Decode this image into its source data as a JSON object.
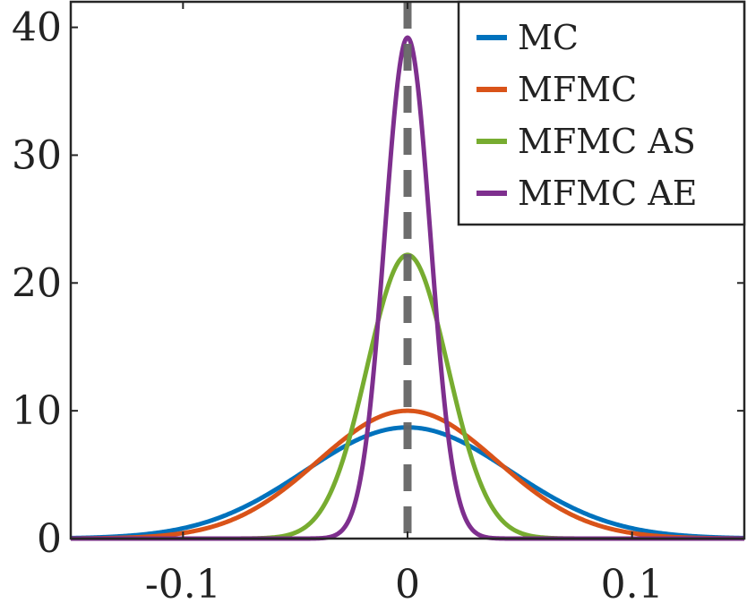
{
  "chart_data": {
    "type": "line",
    "title": "",
    "xlabel": "",
    "ylabel": "",
    "xlim": [
      -0.15,
      0.15
    ],
    "ylim": [
      0,
      42
    ],
    "x_ticks": [
      -0.1,
      0,
      0.1
    ],
    "x_tick_labels": [
      "-0.1",
      "0",
      "0.1"
    ],
    "y_ticks": [
      0,
      10,
      20,
      30,
      40
    ],
    "y_tick_labels": [
      "0",
      "10",
      "20",
      "30",
      "40"
    ],
    "grid": false,
    "legend_position": "top-right",
    "reference_line": {
      "x": 0,
      "style": "dashed",
      "color": "#666666"
    },
    "series": [
      {
        "name": "MC",
        "color": "#0072BD",
        "distribution": "normal",
        "mean": 0,
        "peak": 8.7
      },
      {
        "name": "MFMC",
        "color": "#D95319",
        "distribution": "normal",
        "mean": 0,
        "peak": 10.0
      },
      {
        "name": "MFMC AS",
        "color": "#77AC30",
        "distribution": "normal",
        "mean": 0,
        "peak": 22.2
      },
      {
        "name": "MFMC AE",
        "color": "#7E2F8E",
        "distribution": "normal",
        "mean": 0,
        "peak": 39.2
      }
    ]
  }
}
